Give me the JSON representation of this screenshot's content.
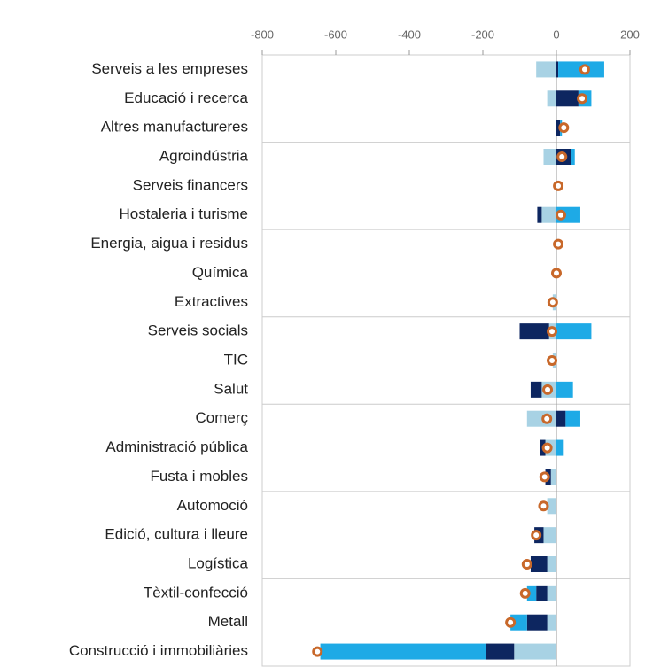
{
  "chart_data": {
    "type": "diverging-bar",
    "categories": [
      "Serveis a les empreses",
      "Educació i recerca",
      "Altres manufactureres",
      "Agroindústria",
      "Serveis financers",
      "Hostaleria i turisme",
      "Energia, aigua i residus",
      "Química",
      "Extractives",
      "Serveis socials",
      "TIC",
      "Salut",
      "Comerç",
      "Administració pública",
      "Fusta i mobles",
      "Automoció",
      "Edició, cultura i lleure",
      "Logística",
      "Tèxtil-confecció",
      "Metall",
      "Construcció i immobiliàries"
    ],
    "series": [
      {
        "color": "#a8d2e4",
        "values": [
          -55,
          -25,
          0,
          -35,
          0,
          -40,
          0,
          0,
          -10,
          -20,
          -10,
          -40,
          -80,
          -30,
          -15,
          -25,
          -35,
          -25,
          -25,
          -25,
          -115
        ]
      },
      {
        "color": "#0d2660",
        "values": [
          5,
          60,
          10,
          40,
          0,
          -12,
          0,
          0,
          0,
          -80,
          0,
          -30,
          25,
          -15,
          -15,
          0,
          -25,
          -45,
          -30,
          -55,
          -77
        ]
      },
      {
        "color": "#1eaae6",
        "values": [
          125,
          35,
          5,
          10,
          0,
          65,
          0,
          0,
          0,
          95,
          0,
          45,
          40,
          20,
          0,
          0,
          0,
          0,
          -25,
          -45,
          -450
        ]
      }
    ],
    "totals": {
      "color": "#c8682a",
      "values": [
        77,
        70,
        20,
        15,
        5,
        12,
        5,
        0,
        -10,
        -12,
        -12,
        -24,
        -26,
        -25,
        -32,
        -35,
        -55,
        -80,
        -85,
        -125,
        -650
      ]
    },
    "xlim": [
      -800,
      200
    ],
    "xticks": [
      -800,
      -600,
      -400,
      -200,
      0,
      200
    ],
    "grid": false
  }
}
